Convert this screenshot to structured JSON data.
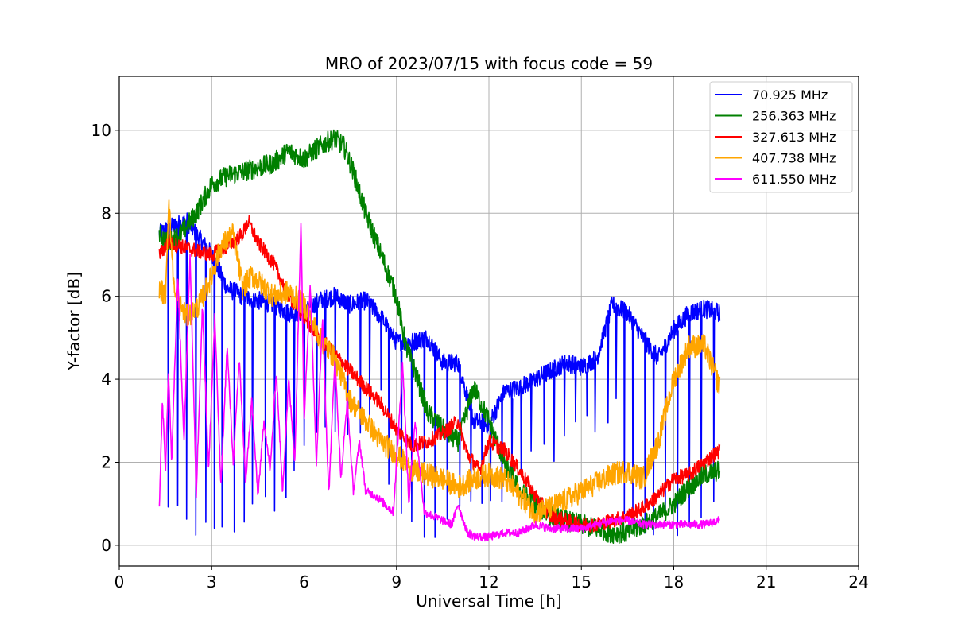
{
  "chart_data": {
    "type": "line",
    "title": "MRO of 2023/07/15 with focus code = 59",
    "xlabel": "Universal Time [h]",
    "ylabel": "Y-factor [dB]",
    "xlim": [
      0,
      24
    ],
    "ylim": [
      -0.5,
      11.3
    ],
    "xticks": [
      0,
      3,
      6,
      9,
      12,
      15,
      18,
      21,
      24
    ],
    "yticks": [
      0,
      2,
      4,
      6,
      8,
      10
    ],
    "grid": true,
    "legend_position": "top-right",
    "series": [
      {
        "name": " 70.925 MHz",
        "color": "#0000ff",
        "x": [
          1.3,
          1.5,
          1.8,
          2.2,
          2.6,
          3.0,
          3.5,
          4.0,
          4.5,
          5.0,
          5.5,
          6.0,
          6.5,
          7.0,
          7.5,
          8.0,
          8.5,
          9.0,
          9.5,
          10.0,
          10.5,
          11.0,
          11.5,
          12.0,
          12.5,
          13.0,
          13.5,
          14.0,
          14.5,
          15.0,
          15.5,
          16.0,
          16.5,
          17.0,
          17.5,
          18.0,
          18.5,
          19.0,
          19.5
        ],
        "values": [
          7.5,
          7.6,
          7.7,
          7.8,
          7.4,
          7.0,
          6.2,
          6.0,
          5.9,
          5.8,
          5.6,
          5.6,
          5.9,
          6.0,
          5.8,
          5.9,
          5.5,
          4.9,
          4.9,
          5.0,
          4.4,
          4.4,
          3.0,
          2.9,
          3.7,
          3.8,
          4.0,
          4.2,
          4.4,
          4.3,
          4.5,
          5.8,
          5.6,
          5.0,
          4.5,
          5.2,
          5.6,
          5.7,
          5.6
        ],
        "dips": [
          0.7,
          0.4,
          0.1,
          0.05,
          0.1,
          0.1,
          0.2,
          0.3,
          0.4,
          0.5,
          0.6,
          0.8,
          1.0,
          1.5,
          1.8,
          2.0,
          2.2,
          2.4,
          2.5,
          2.7,
          2.8,
          3.0
        ]
      },
      {
        "name": "256.363 MHz",
        "color": "#008000",
        "x": [
          1.3,
          1.6,
          2.0,
          2.5,
          3.0,
          3.5,
          4.0,
          4.5,
          5.0,
          5.5,
          6.0,
          6.3,
          6.7,
          7.0,
          7.3,
          7.6,
          8.0,
          8.5,
          9.0,
          9.3,
          9.6,
          10.0,
          10.5,
          11.0,
          11.5,
          12.0,
          12.5,
          13.0,
          13.5,
          14.0,
          14.5,
          15.0,
          15.5,
          16.0,
          16.5,
          17.0,
          17.5,
          18.0,
          18.5,
          19.0,
          19.5
        ],
        "values": [
          7.5,
          7.3,
          7.5,
          8.0,
          8.7,
          8.9,
          9.0,
          9.1,
          9.2,
          9.5,
          9.3,
          9.5,
          9.7,
          9.8,
          9.6,
          9.0,
          8.0,
          7.0,
          6.0,
          4.8,
          4.2,
          3.2,
          2.8,
          2.5,
          3.8,
          3.0,
          2.0,
          1.3,
          1.0,
          0.7,
          0.6,
          0.5,
          0.4,
          0.3,
          0.3,
          0.5,
          0.7,
          1.0,
          1.4,
          1.7,
          1.8
        ],
        "noise": 0.25
      },
      {
        "name": "327.613 MHz",
        "color": "#ff0000",
        "x": [
          1.3,
          1.6,
          2.0,
          2.5,
          3.0,
          3.5,
          4.0,
          4.2,
          4.5,
          5.0,
          5.5,
          6.0,
          6.5,
          7.0,
          7.5,
          8.0,
          8.5,
          9.0,
          9.5,
          10.0,
          10.5,
          11.0,
          11.3,
          11.7,
          12.0,
          12.5,
          13.0,
          13.5,
          14.0,
          14.5,
          15.0,
          15.5,
          16.0,
          16.5,
          17.0,
          17.5,
          18.0,
          18.5,
          19.0,
          19.5
        ],
        "values": [
          7.0,
          7.3,
          7.2,
          7.1,
          7.0,
          7.2,
          7.5,
          7.8,
          7.3,
          6.8,
          6.0,
          5.5,
          5.0,
          4.6,
          4.2,
          3.8,
          3.4,
          2.8,
          2.4,
          2.5,
          2.7,
          3.0,
          2.2,
          1.8,
          2.5,
          2.3,
          1.8,
          1.2,
          0.7,
          0.6,
          0.5,
          0.5,
          0.6,
          0.7,
          0.9,
          1.2,
          1.6,
          1.7,
          2.0,
          2.3
        ],
        "noise": 0.18
      },
      {
        "name": "407.738 MHz",
        "color": "#ffa500",
        "x": [
          1.3,
          1.5,
          1.6,
          1.8,
          2.2,
          2.6,
          3.0,
          3.3,
          3.7,
          4.0,
          4.3,
          4.6,
          5.0,
          5.5,
          6.0,
          6.5,
          7.0,
          7.5,
          8.0,
          8.5,
          9.0,
          9.5,
          10.0,
          10.5,
          11.0,
          11.5,
          12.0,
          12.5,
          13.0,
          13.5,
          14.0,
          14.5,
          15.0,
          15.5,
          16.0,
          16.5,
          17.0,
          17.5,
          18.0,
          18.5,
          19.0,
          19.5
        ],
        "values": [
          6.2,
          6.0,
          8.3,
          6.0,
          5.5,
          5.8,
          6.5,
          7.2,
          7.5,
          6.2,
          6.5,
          6.3,
          6.0,
          6.1,
          5.8,
          5.0,
          4.5,
          3.5,
          3.0,
          2.5,
          2.2,
          1.8,
          1.7,
          1.6,
          1.4,
          1.6,
          1.7,
          1.6,
          1.2,
          0.8,
          0.9,
          1.1,
          1.3,
          1.5,
          1.7,
          1.8,
          1.6,
          2.5,
          4.0,
          4.8,
          4.8,
          3.8
        ],
        "noise": 0.28
      },
      {
        "name": "611.550 MHz",
        "color": "#ff00ff",
        "x": [
          1.3,
          1.4,
          1.5,
          1.6,
          1.7,
          1.9,
          2.1,
          2.3,
          2.5,
          2.7,
          2.9,
          3.1,
          3.3,
          3.5,
          3.7,
          3.9,
          4.1,
          4.3,
          4.5,
          4.7,
          4.9,
          5.1,
          5.3,
          5.5,
          5.7,
          5.9,
          6.0,
          6.2,
          6.4,
          6.6,
          6.8,
          7.0,
          7.2,
          7.4,
          7.6,
          7.8,
          8.0,
          8.3,
          8.6,
          8.9,
          9.2,
          9.4,
          9.6,
          9.9,
          10.2,
          10.5,
          10.8,
          11.0,
          11.3,
          11.6,
          12.0,
          12.5,
          13.0,
          13.5,
          14.0,
          14.5,
          15.0,
          15.5,
          16.0,
          16.5,
          17.0,
          17.5,
          18.0,
          18.5,
          19.0,
          19.5
        ],
        "values": [
          0.9,
          3.5,
          1.8,
          4.2,
          2.0,
          6.5,
          2.5,
          7.0,
          1.2,
          5.8,
          1.8,
          5.5,
          1.4,
          4.8,
          2.0,
          4.5,
          1.5,
          3.5,
          1.2,
          3.0,
          1.8,
          4.2,
          1.3,
          4.0,
          2.0,
          7.9,
          3.0,
          6.3,
          2.0,
          5.5,
          1.2,
          4.5,
          1.6,
          3.5,
          1.3,
          2.5,
          1.3,
          1.2,
          1.0,
          0.8,
          4.4,
          1.0,
          3.0,
          0.8,
          0.7,
          0.6,
          0.5,
          1.0,
          0.3,
          0.2,
          0.2,
          0.3,
          0.3,
          0.5,
          0.4,
          0.4,
          0.4,
          0.5,
          0.6,
          0.6,
          0.5,
          0.5,
          0.5,
          0.5,
          0.5,
          0.6
        ],
        "noise": 0.1
      }
    ]
  }
}
